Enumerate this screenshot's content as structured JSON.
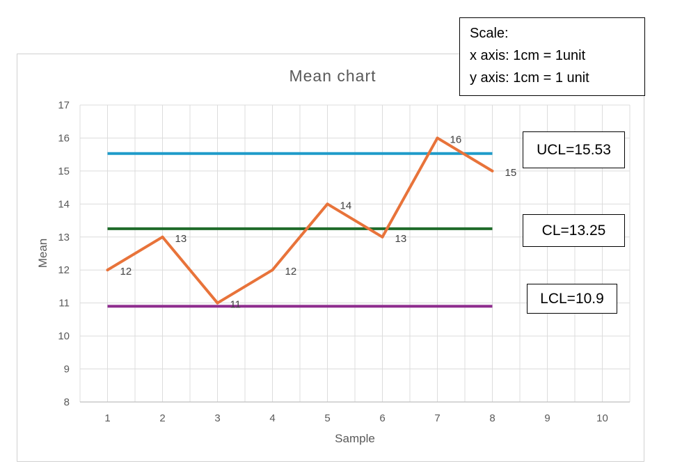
{
  "chart_data": {
    "type": "line",
    "title": "Mean chart",
    "xlabel": "Sample",
    "ylabel": "Mean",
    "x_ticks": [
      "1",
      "2",
      "3",
      "4",
      "5",
      "6",
      "7",
      "8",
      "9",
      "10"
    ],
    "xlim": [
      0.5,
      10.5
    ],
    "ylim": [
      8,
      17
    ],
    "y_ticks": [
      8,
      9,
      10,
      11,
      12,
      13,
      14,
      15,
      16,
      17
    ],
    "grid": true,
    "series": [
      {
        "x": [
          1,
          2,
          3,
          4,
          5,
          6,
          7,
          8
        ],
        "values": [
          12,
          13,
          11,
          12,
          14,
          13,
          16,
          15
        ],
        "labels": [
          "12",
          "13",
          "11",
          "12",
          "14",
          "13",
          "16",
          "15"
        ]
      }
    ],
    "control_lines": [
      {
        "name": "UCL",
        "value": 15.53,
        "color": "#1f9bc9"
      },
      {
        "name": "CL",
        "value": 13.25,
        "color": "#1f6b2a"
      },
      {
        "name": "LCL",
        "value": 10.9,
        "color": "#8e2c8e"
      }
    ],
    "control_line_x_range": [
      1,
      8
    ],
    "colors": {
      "series": "#e8733a",
      "grid": "#dcdcdc",
      "text": "#595959"
    }
  },
  "scale_box": {
    "title": "Scale:",
    "x_axis": "x axis: 1cm = 1unit",
    "y_axis": "y axis: 1cm = 1 unit"
  },
  "callouts": {
    "ucl": "UCL=15.53",
    "cl": "CL=13.25",
    "lcl": "LCL=10.9"
  }
}
